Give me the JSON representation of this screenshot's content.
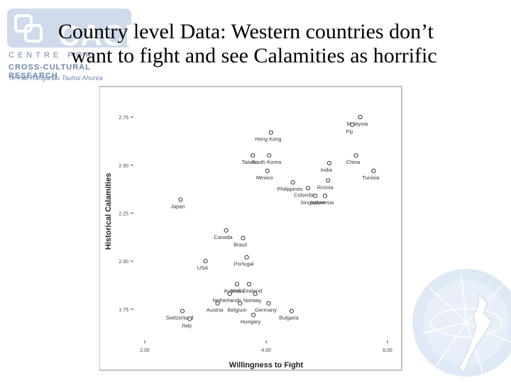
{
  "logo": {
    "wordmark": "CACR",
    "line1": "CENTRE FOR",
    "line2": "CROSS-CULTURAL RESEARCH",
    "line3": "Te Pae Rangahau Tauhoi Ahurea"
  },
  "slide": {
    "title_line1": "Country level Data: Western countries don’t",
    "title_line2": "want to fight and see Calamities as horrific"
  },
  "chart_data": {
    "type": "scatter",
    "xlabel": "Willingness to Fight",
    "ylabel": "Historical Calamities",
    "xlim": [
      2.0,
      6.0
    ],
    "ylim": [
      1.55,
      2.85
    ],
    "xticks": [
      "2.00",
      "4.00",
      "6.00"
    ],
    "yticks": [
      "2.75",
      "2.50",
      "2.25",
      "2.00",
      "1.75"
    ],
    "ytick_values": [
      2.75,
      2.5,
      2.25,
      2.0,
      1.75
    ],
    "xtick_values": [
      2.0,
      4.0,
      6.0
    ],
    "grid": false,
    "points": [
      {
        "label": "Malaysia",
        "x": 5.55,
        "y": 2.75
      },
      {
        "label": "Fiji",
        "x": 5.42,
        "y": 2.71
      },
      {
        "label": "Hong Kong",
        "x": 4.08,
        "y": 2.67
      },
      {
        "label": "China",
        "x": 5.48,
        "y": 2.55
      },
      {
        "label": "India",
        "x": 5.04,
        "y": 2.51
      },
      {
        "label": "Tunisia",
        "x": 5.77,
        "y": 2.47
      },
      {
        "label": "Taiwan",
        "x": 3.78,
        "y": 2.55
      },
      {
        "label": "South Korea",
        "x": 4.05,
        "y": 2.55
      },
      {
        "label": "Mexico",
        "x": 4.02,
        "y": 2.47
      },
      {
        "label": "Philippines",
        "x": 4.44,
        "y": 2.41
      },
      {
        "label": "Russia",
        "x": 5.02,
        "y": 2.42
      },
      {
        "label": "Colombia",
        "x": 4.69,
        "y": 2.38
      },
      {
        "label": "Singapore",
        "x": 4.81,
        "y": 2.34
      },
      {
        "label": "Indonesia",
        "x": 4.97,
        "y": 2.34
      },
      {
        "label": "Japan",
        "x": 2.59,
        "y": 2.32
      },
      {
        "label": "Canada",
        "x": 3.34,
        "y": 2.16
      },
      {
        "label": "Brasil",
        "x": 3.62,
        "y": 2.12
      },
      {
        "label": "Portugal",
        "x": 3.68,
        "y": 2.02
      },
      {
        "label": "USA",
        "x": 3.0,
        "y": 2.0
      },
      {
        "label": "Australia",
        "x": 3.52,
        "y": 1.88
      },
      {
        "label": "New Zealand",
        "x": 3.72,
        "y": 1.88
      },
      {
        "label": "Netherlands",
        "x": 3.4,
        "y": 1.83
      },
      {
        "label": "Norway",
        "x": 3.82,
        "y": 1.83
      },
      {
        "label": "Austria",
        "x": 3.2,
        "y": 1.78
      },
      {
        "label": "Belgium",
        "x": 3.57,
        "y": 1.78
      },
      {
        "label": "Germany",
        "x": 4.04,
        "y": 1.78
      },
      {
        "label": "Switzerland",
        "x": 2.62,
        "y": 1.74
      },
      {
        "label": "Italy",
        "x": 2.74,
        "y": 1.7
      },
      {
        "label": "Hungary",
        "x": 3.79,
        "y": 1.72
      },
      {
        "label": "Bulgaria",
        "x": 4.42,
        "y": 1.74
      }
    ]
  }
}
